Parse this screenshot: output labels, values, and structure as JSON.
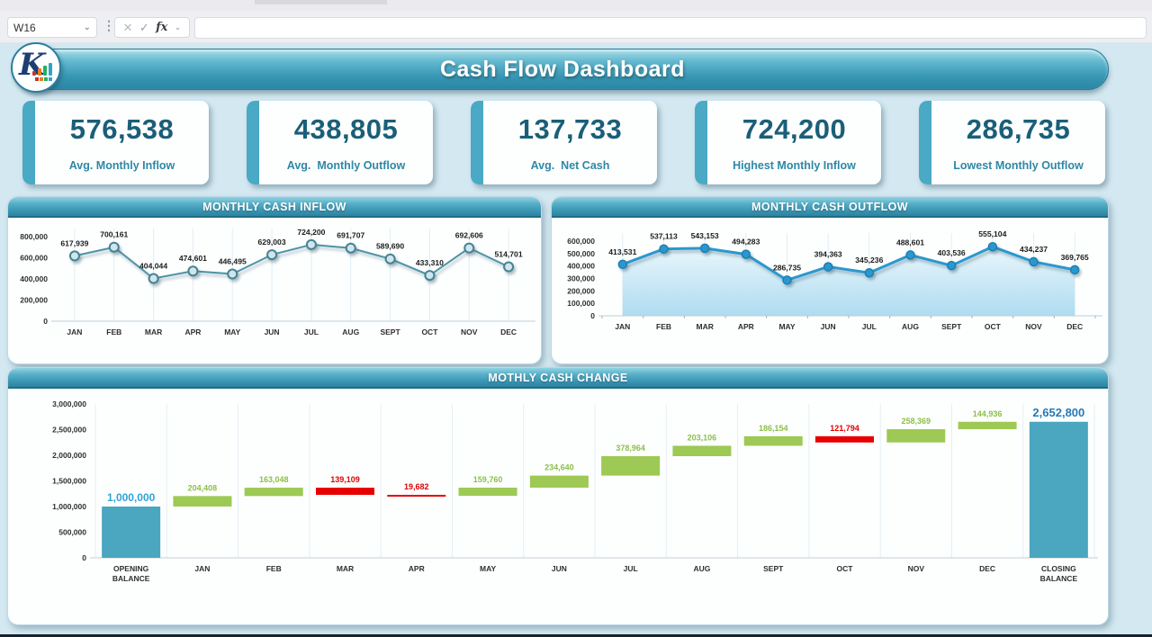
{
  "formula_bar": {
    "cell_ref": "W16",
    "cancel_icon": "✕",
    "enter_icon": "✓",
    "fx_label": "fx",
    "value": ""
  },
  "header": {
    "title": "Cash Flow Dashboard"
  },
  "logo": {
    "letter": "K",
    "bar_colors": [
      "#c0392b",
      "#e67e22",
      "#27ae60",
      "#2aa7c7"
    ]
  },
  "kpis": [
    {
      "value": "576,538",
      "label": "Avg. Monthly Inflow"
    },
    {
      "value": "438,805",
      "label": "Avg.  Monthly Outflow"
    },
    {
      "value": "137,733",
      "label": "Avg.  Net Cash"
    },
    {
      "value": "724,200",
      "label": "Highest Monthly Inflow"
    },
    {
      "value": "286,735",
      "label": "Lowest Monthly Outflow"
    }
  ],
  "chart_data": [
    {
      "type": "line",
      "title": "MONTHLY CASH INFLOW",
      "categories": [
        "JAN",
        "FEB",
        "MAR",
        "APR",
        "MAY",
        "JUN",
        "JUL",
        "AUG",
        "SEPT",
        "OCT",
        "NOV",
        "DEC"
      ],
      "values": [
        617939,
        700161,
        404044,
        474601,
        446495,
        629003,
        724200,
        691707,
        589690,
        433310,
        692606,
        514701
      ],
      "xlabel": "",
      "ylabel": "",
      "ylim": [
        0,
        800000
      ],
      "ytick_step": 200000,
      "grid": true,
      "legend": false,
      "line_color": "#4e93a6",
      "marker_fill": "#cfe6ee",
      "marker_stroke": "#47828f"
    },
    {
      "type": "area",
      "title": "MONTHLY CASH OUTFLOW",
      "categories": [
        "JAN",
        "FEB",
        "MAR",
        "APR",
        "MAY",
        "JUN",
        "JUL",
        "AUG",
        "SEPT",
        "OCT",
        "NOV",
        "DEC"
      ],
      "values": [
        413531,
        537113,
        543153,
        494283,
        286735,
        394363,
        345236,
        488601,
        403536,
        555104,
        434237,
        369765
      ],
      "xlabel": "",
      "ylabel": "",
      "ylim": [
        0,
        600000
      ],
      "ytick_step": 100000,
      "grid": true,
      "legend": false,
      "ticks": true,
      "line_color": "#2b98cf",
      "marker_fill": "#2b98cf",
      "marker_stroke": "#1f7fb2",
      "area_fill": [
        "#eaf6fc",
        "#aedcf0"
      ]
    },
    {
      "type": "waterfall",
      "title": "MOTHLY CASH CHANGE",
      "categories": [
        "OPENING BALANCE",
        "JAN",
        "FEB",
        "MAR",
        "APR",
        "MAY",
        "JUN",
        "JUL",
        "AUG",
        "SEPT",
        "OCT",
        "NOV",
        "DEC",
        "CLOSING BALANCE"
      ],
      "bars": [
        {
          "label": "OPENING BALANCE",
          "value": 1000000,
          "kind": "total"
        },
        {
          "label": "JAN",
          "value": 204408,
          "kind": "increase"
        },
        {
          "label": "FEB",
          "value": 163048,
          "kind": "increase"
        },
        {
          "label": "MAR",
          "value": -139109,
          "kind": "decrease"
        },
        {
          "label": "APR",
          "value": -19682,
          "kind": "decrease"
        },
        {
          "label": "MAY",
          "value": 159760,
          "kind": "increase"
        },
        {
          "label": "JUN",
          "value": 234640,
          "kind": "increase"
        },
        {
          "label": "JUL",
          "value": 378964,
          "kind": "increase"
        },
        {
          "label": "AUG",
          "value": 203106,
          "kind": "increase"
        },
        {
          "label": "SEPT",
          "value": 186154,
          "kind": "increase"
        },
        {
          "label": "OCT",
          "value": -121794,
          "kind": "decrease"
        },
        {
          "label": "NOV",
          "value": 258369,
          "kind": "increase"
        },
        {
          "label": "DEC",
          "value": 144936,
          "kind": "increase"
        },
        {
          "label": "CLOSING BALANCE",
          "value": 2652800,
          "kind": "total"
        }
      ],
      "ylim": [
        0,
        3000000
      ],
      "ytick_step": 500000,
      "grid": true,
      "legend": false,
      "colors": {
        "total": "#4ba6c0",
        "increase": "#9dc954",
        "decrease": "#e60000"
      },
      "label_colors": {
        "opening": "#2fa3d9",
        "closing": "#2679b5",
        "increase": "#8cbf45",
        "decrease": "#e30000"
      }
    }
  ]
}
